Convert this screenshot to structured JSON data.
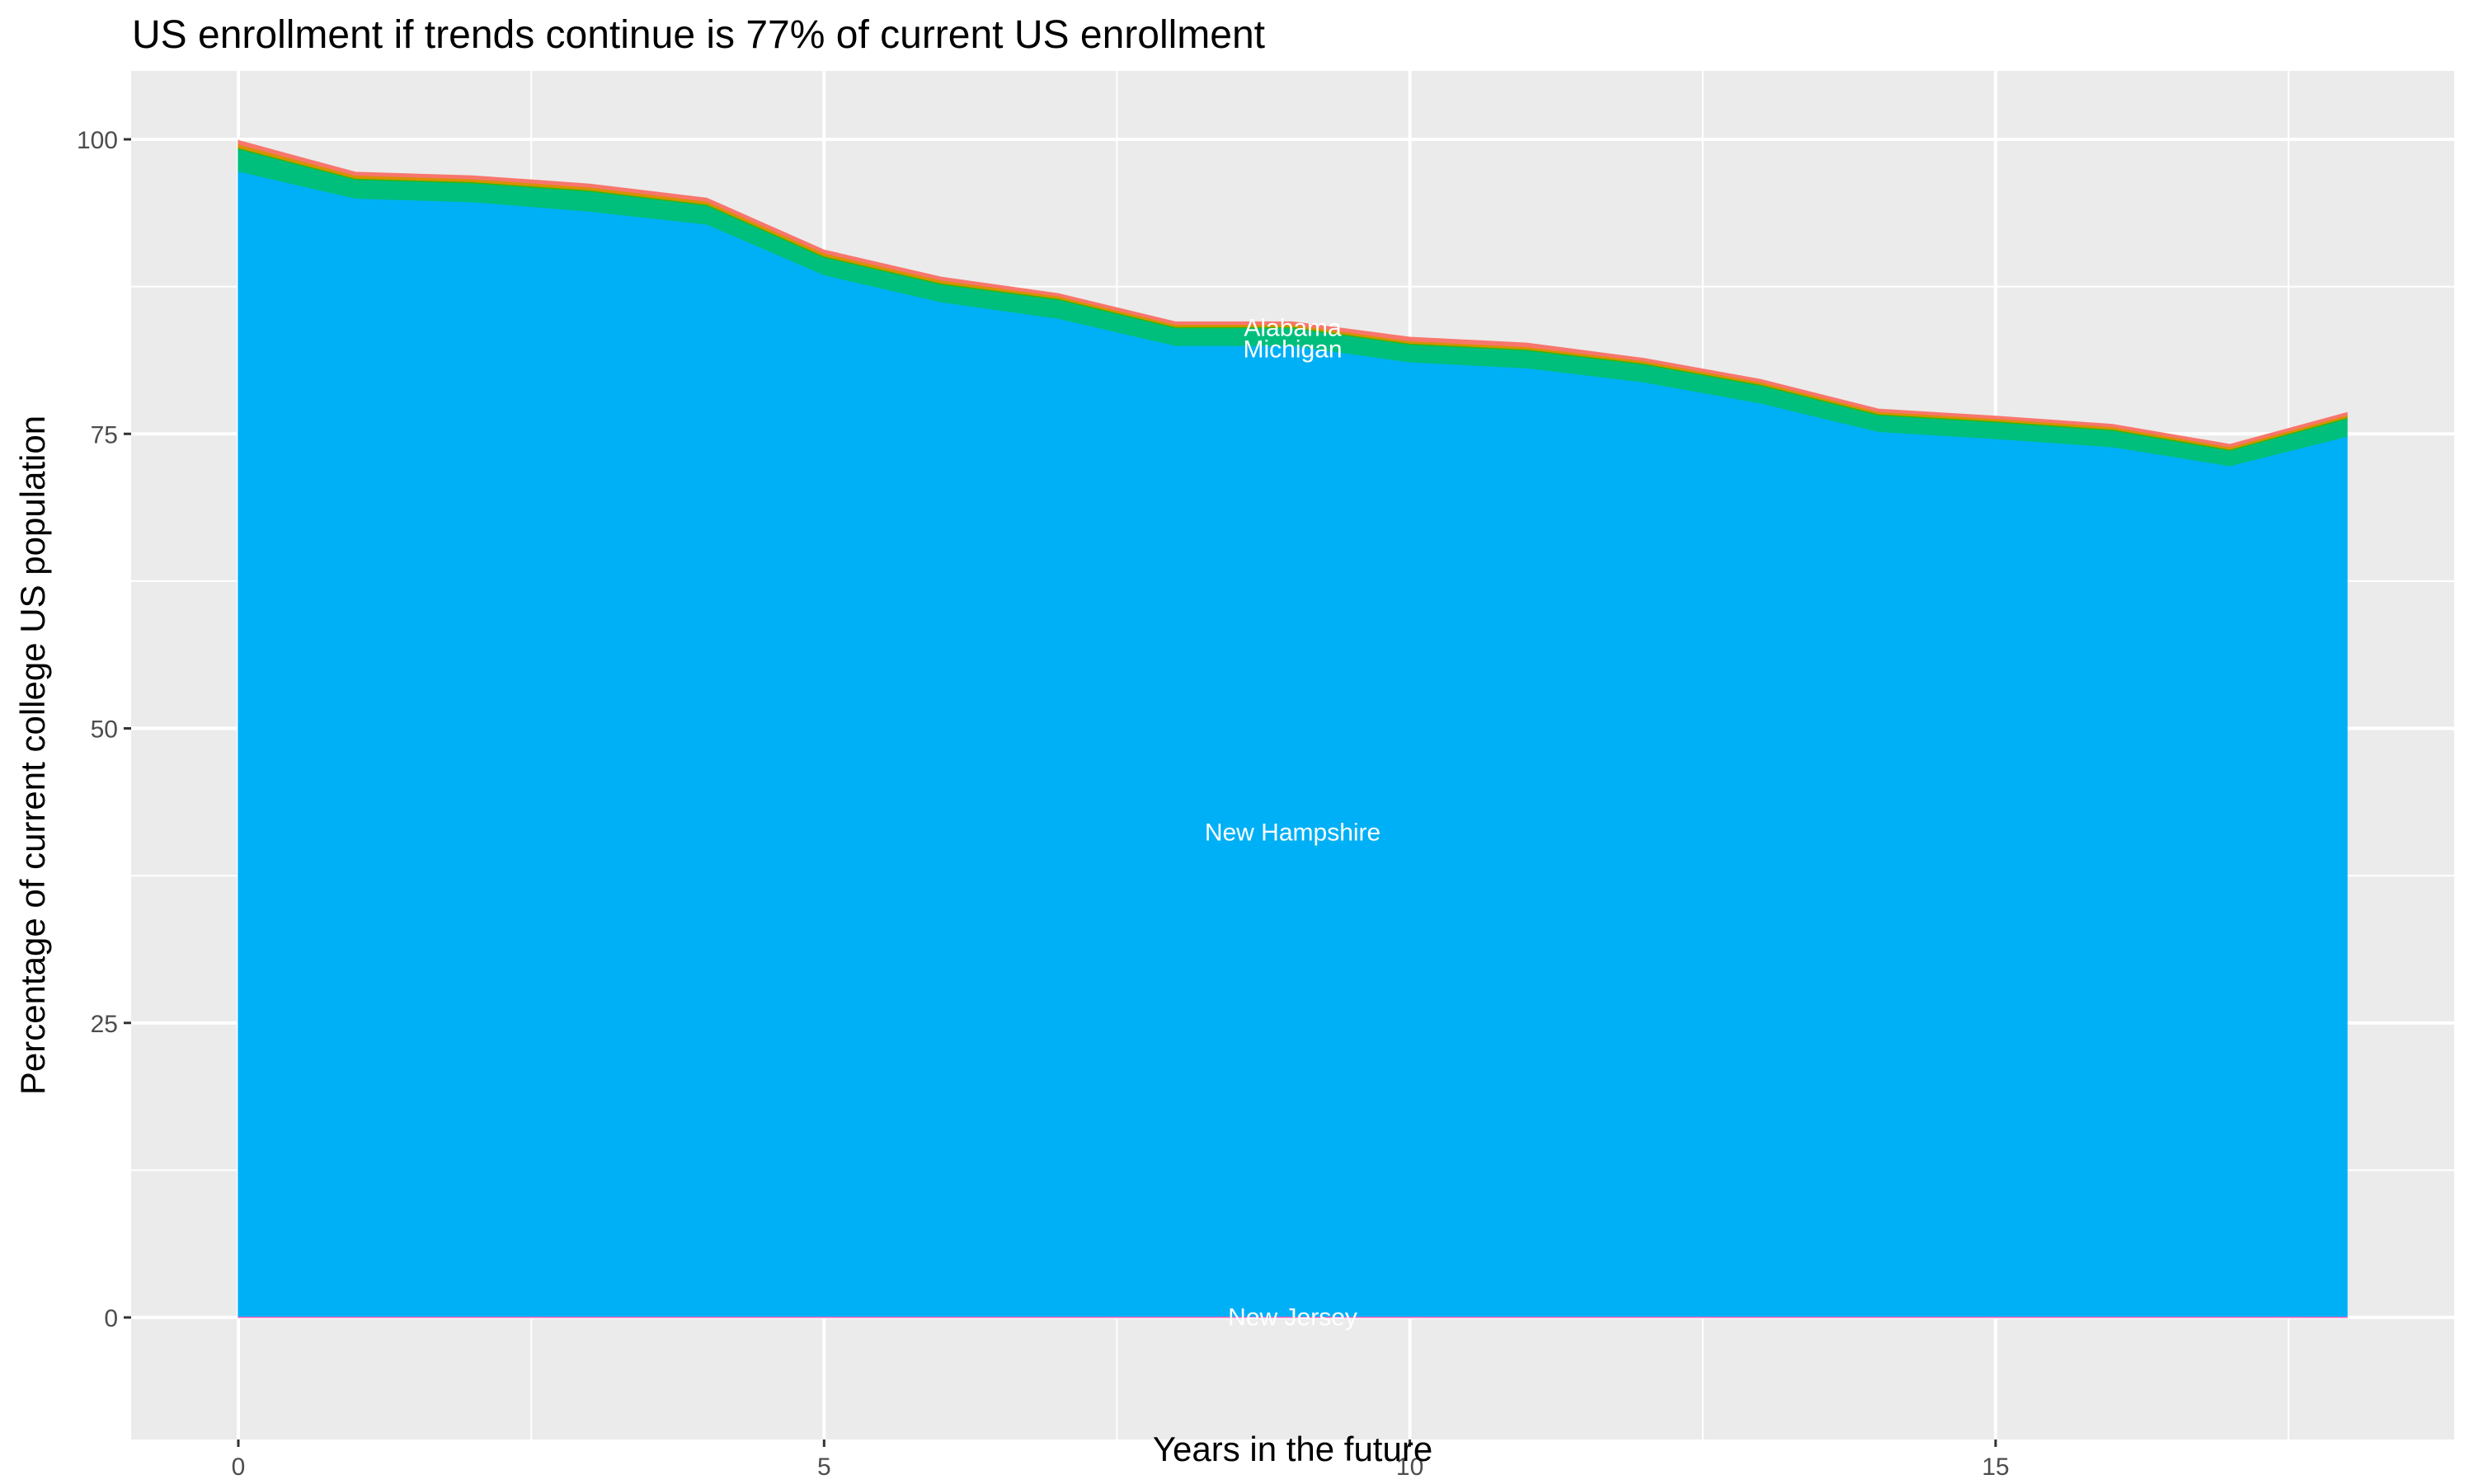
{
  "chart_data": {
    "type": "area",
    "stacked": true,
    "title": "US enrollment if trends continue is 77% of current US enrollment",
    "xlabel": "Years in the future",
    "ylabel": "Percentage of current college US population",
    "xlim": [
      -0.45,
      18.85
    ],
    "ylim": [
      -5,
      105
    ],
    "x_ticks": [
      0,
      5,
      10,
      15
    ],
    "y_ticks": [
      0,
      25,
      50,
      75,
      100
    ],
    "grid": true,
    "legend": "none (direct labels)",
    "x": [
      0,
      1,
      2,
      3,
      4,
      5,
      6,
      7,
      8,
      9,
      10,
      11,
      12,
      13,
      14,
      15,
      16,
      17,
      18
    ],
    "series": [
      {
        "name": "New Jersey",
        "color": "#FF62BC",
        "values": [
          0.1,
          0.1,
          0.1,
          0.1,
          0.1,
          0.1,
          0.1,
          0.1,
          0.1,
          0.1,
          0.1,
          0.1,
          0.1,
          0.1,
          0.1,
          0.1,
          0.1,
          0.1,
          0.1
        ]
      },
      {
        "name": "New Hampshire",
        "color": "#00B0F6",
        "values": [
          97.2,
          94.9,
          94.6,
          93.8,
          92.7,
          88.4,
          86.1,
          84.7,
          82.4,
          82.4,
          81.0,
          80.5,
          79.3,
          77.5,
          75.1,
          74.5,
          73.8,
          72.2,
          74.7
        ]
      },
      {
        "name": "Michigan",
        "color": "#00BF7D",
        "values": [
          1.9,
          1.6,
          1.6,
          1.7,
          1.6,
          1.5,
          1.5,
          1.6,
          1.5,
          1.5,
          1.5,
          1.5,
          1.5,
          1.5,
          1.4,
          1.4,
          1.4,
          1.3,
          1.5
        ]
      },
      {
        "name": "(unlabeled)",
        "color": "#39B600",
        "values": [
          0.1,
          0.1,
          0.1,
          0.1,
          0.1,
          0.1,
          0.1,
          0.1,
          0.1,
          0.1,
          0.1,
          0.1,
          0.1,
          0.1,
          0.1,
          0.1,
          0.1,
          0.1,
          0.1
        ]
      },
      {
        "name": "(unlabeled)",
        "color": "#D89000",
        "values": [
          0.3,
          0.25,
          0.25,
          0.25,
          0.25,
          0.25,
          0.25,
          0.2,
          0.2,
          0.2,
          0.2,
          0.2,
          0.2,
          0.2,
          0.2,
          0.2,
          0.2,
          0.2,
          0.2
        ]
      },
      {
        "name": "Alabama",
        "color": "#F8766D",
        "values": [
          0.3,
          0.25,
          0.25,
          0.25,
          0.25,
          0.25,
          0.25,
          0.2,
          0.2,
          0.2,
          0.3,
          0.3,
          0.2,
          0.2,
          0.2,
          0.2,
          0.2,
          0.2,
          0.2
        ]
      }
    ],
    "totals": [
      99.9,
      97.2,
      96.9,
      96.2,
      95.0,
      90.6,
      88.3,
      86.9,
      84.5,
      84.5,
      83.2,
      82.7,
      81.4,
      79.6,
      77.1,
      76.5,
      75.8,
      74.0,
      76.8
    ],
    "annotations": [
      {
        "text": "Alabama",
        "x": 9,
        "y": 84.0
      },
      {
        "text": "Michigan",
        "x": 9,
        "y": 82.2
      },
      {
        "text": "New Hampshire",
        "x": 9,
        "y": 41.2
      },
      {
        "text": "New Jersey",
        "x": 9,
        "y": 0.05
      }
    ]
  },
  "colors": {
    "panel_bg": "#EBEBEB",
    "grid_major": "#FFFFFF",
    "grid_minor": "#F5F5F5",
    "tick_text": "#4D4D4D",
    "tick_mark": "#333333"
  }
}
